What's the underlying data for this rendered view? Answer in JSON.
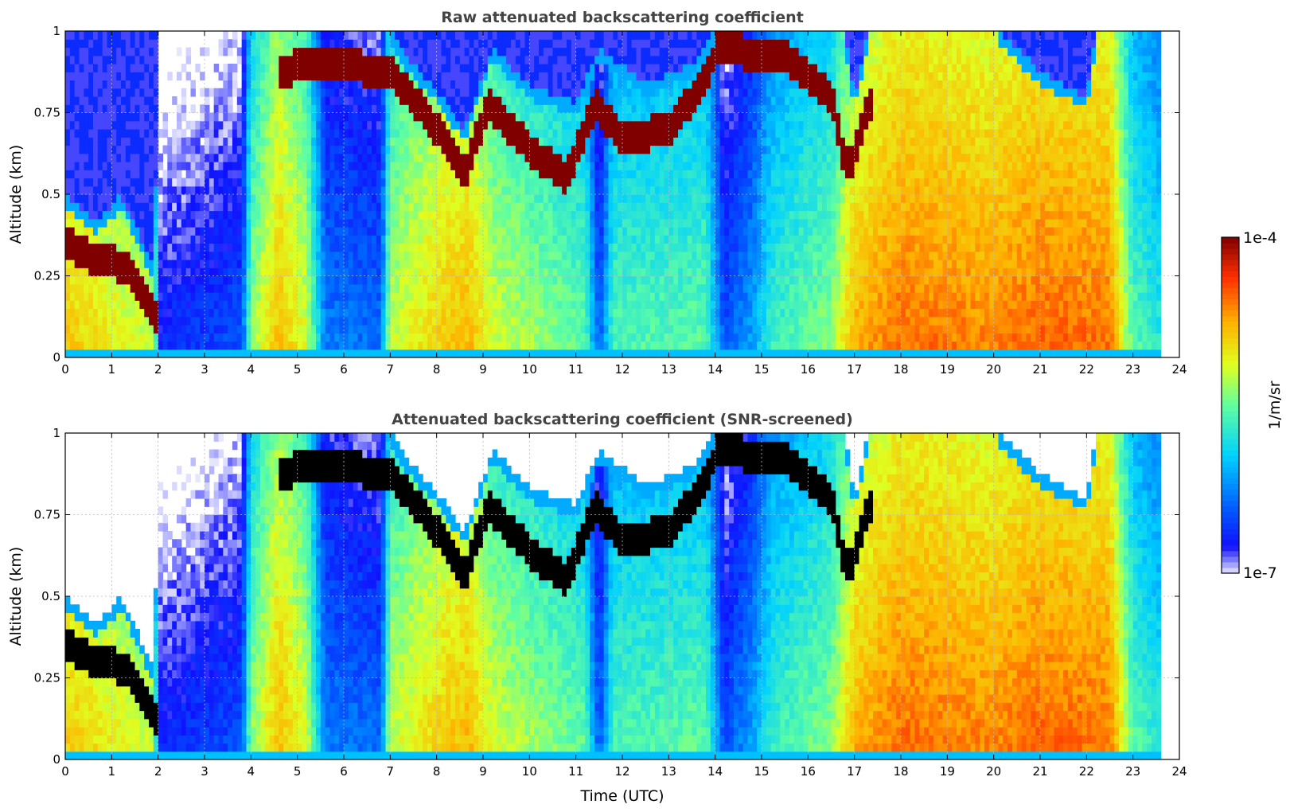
{
  "chart_data": [
    {
      "type": "heatmap",
      "title": "Raw attenuated backscattering coefficient",
      "xlabel": "",
      "ylabel": "Altitude (km)",
      "xlim": [
        0,
        24
      ],
      "ylim": [
        0,
        1
      ],
      "xticks": [
        0,
        1,
        2,
        3,
        4,
        5,
        6,
        7,
        8,
        9,
        10,
        11,
        12,
        13,
        14,
        15,
        16,
        17,
        18,
        19,
        20,
        21,
        22,
        23,
        24
      ],
      "xtick_labels": [
        "0",
        "1",
        "2",
        "3",
        "4",
        "5",
        "6",
        "7",
        "8",
        "9",
        "10",
        "11",
        "12",
        "13",
        "14",
        "15",
        "16",
        "17",
        "18",
        "19",
        "20",
        "21",
        "22",
        "23",
        "24"
      ],
      "yticks": [
        0,
        0.25,
        0.5,
        0.75,
        1
      ],
      "ytick_labels": [
        "0",
        "0.25",
        "0.5",
        "0.75",
        "1"
      ],
      "grid": true,
      "data_end_hour": 23.6,
      "layer_top_km": [
        [
          0,
          0.5
        ],
        [
          0.7,
          0.42
        ],
        [
          1.2,
          0.5
        ],
        [
          1.9,
          0.28
        ],
        [
          2.05,
          1.0
        ],
        [
          7.0,
          1.0
        ],
        [
          7.2,
          0.95
        ],
        [
          8.0,
          0.82
        ],
        [
          8.6,
          0.7
        ],
        [
          9.2,
          0.95
        ],
        [
          10.0,
          0.83
        ],
        [
          11.0,
          0.78
        ],
        [
          11.5,
          0.95
        ],
        [
          12.5,
          0.84
        ],
        [
          13.5,
          0.9
        ],
        [
          14.0,
          1.0
        ],
        [
          16.8,
          1.0
        ],
        [
          17.0,
          0.8
        ],
        [
          17.3,
          1.0
        ],
        [
          20.1,
          1.0
        ],
        [
          21.0,
          0.88
        ],
        [
          22.0,
          0.8
        ],
        [
          22.2,
          1.0
        ],
        [
          23.6,
          1.0
        ]
      ],
      "cloud_base_km": [
        [
          0.0,
          0.35
        ],
        [
          0.7,
          0.3
        ],
        [
          1.3,
          0.28
        ],
        [
          2.0,
          0.1
        ],
        [
          4.6,
          0.88
        ],
        [
          5.4,
          0.9
        ],
        [
          7.0,
          0.88
        ],
        [
          8.0,
          0.7
        ],
        [
          8.6,
          0.55
        ],
        [
          9.1,
          0.78
        ],
        [
          10.0,
          0.64
        ],
        [
          10.8,
          0.55
        ],
        [
          11.4,
          0.78
        ],
        [
          12.0,
          0.67
        ],
        [
          13.0,
          0.7
        ],
        [
          13.8,
          0.85
        ],
        [
          14.0,
          0.95
        ],
        [
          15.5,
          0.92
        ],
        [
          16.5,
          0.8
        ],
        [
          16.8,
          0.58
        ],
        [
          17.0,
          0.62
        ],
        [
          17.3,
          0.78
        ]
      ]
    },
    {
      "type": "heatmap",
      "title": "Attenuated backscattering coefficient (SNR-screened)",
      "xlabel": "Time (UTC)",
      "ylabel": "Altitude (km)",
      "xlim": [
        0,
        24
      ],
      "ylim": [
        0,
        1
      ],
      "xticks": [
        0,
        1,
        2,
        3,
        4,
        5,
        6,
        7,
        8,
        9,
        10,
        11,
        12,
        13,
        14,
        15,
        16,
        17,
        18,
        19,
        20,
        21,
        22,
        23,
        24
      ],
      "xtick_labels": [
        "0",
        "1",
        "2",
        "3",
        "4",
        "5",
        "6",
        "7",
        "8",
        "9",
        "10",
        "11",
        "12",
        "13",
        "14",
        "15",
        "16",
        "17",
        "18",
        "19",
        "20",
        "21",
        "22",
        "23",
        "24"
      ],
      "yticks": [
        0,
        0.25,
        0.5,
        0.75,
        1
      ],
      "ytick_labels": [
        "0",
        "0.25",
        "0.5",
        "0.75",
        "1"
      ],
      "grid": true,
      "data_end_hour": 23.6,
      "saturated_color": "#000000"
    }
  ],
  "colorbar": {
    "label": "1/m/sr",
    "max_label": "1e-4",
    "min_label": "1e-7",
    "scale": "log",
    "range": [
      1e-07,
      0.0001
    ],
    "colormap": [
      "#e8e8ff",
      "#0000ff",
      "#0078ff",
      "#00dcff",
      "#50ffaa",
      "#d2ff2a",
      "#ffb400",
      "#ff3c00",
      "#820000"
    ]
  }
}
